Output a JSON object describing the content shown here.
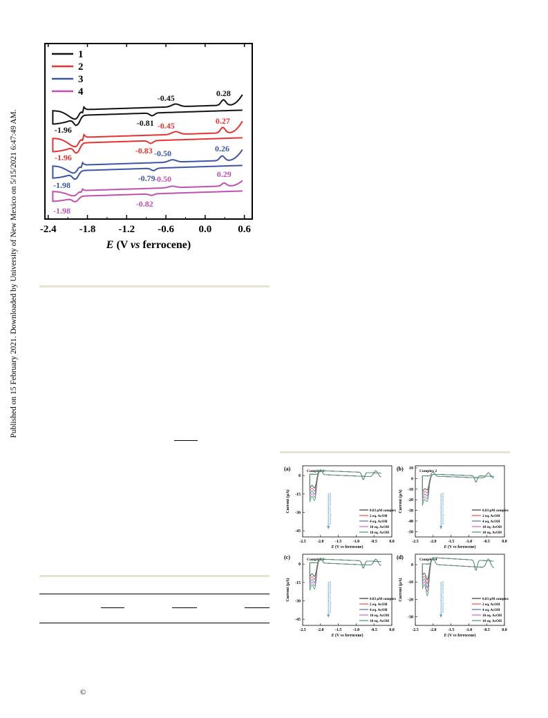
{
  "side_note": "Published on 15 February 2021. Downloaded by University of New Mexico on 5/15/2021 6:47:49 AM.",
  "copyright_symbol": "©",
  "colors": {
    "s1": "#111111",
    "s2": "#e8322f",
    "s3": "#3a55a8",
    "s4": "#c050b0",
    "rule": "#e6e4cf",
    "arrow": "#5b9bd5"
  },
  "chart_data": [
    {
      "type": "line",
      "title": "",
      "xlabel": "E (V vs ferrocene)",
      "ylabel": "",
      "xlim": [
        -2.45,
        0.72
      ],
      "ticks": [
        "-2.4",
        "-1.8",
        "-1.2",
        "-0.6",
        "0.0",
        "0.6"
      ],
      "tick_values": [
        -2.4,
        -1.8,
        -1.2,
        -0.6,
        0.0,
        0.6
      ],
      "legend": "top-left",
      "series": [
        {
          "name": "1",
          "peaks": [
            {
              "x": -1.96,
              "label": "-1.96"
            },
            {
              "x": -0.81,
              "label": "-0.81"
            },
            {
              "x": -0.45,
              "label": "-0.45"
            },
            {
              "x": 0.28,
              "label": "0.28"
            }
          ]
        },
        {
          "name": "2",
          "peaks": [
            {
              "x": -1.96,
              "label": "-1.96"
            },
            {
              "x": -0.83,
              "label": "-0.83"
            },
            {
              "x": -0.45,
              "label": "-0.45"
            },
            {
              "x": 0.27,
              "label": "0.27"
            }
          ]
        },
        {
          "name": "3",
          "peaks": [
            {
              "x": -1.98,
              "label": "-1.98"
            },
            {
              "x": -0.79,
              "label": "-0.79"
            },
            {
              "x": -0.5,
              "label": "-0.50"
            },
            {
              "x": 0.26,
              "label": "0.26"
            }
          ]
        },
        {
          "name": "4",
          "peaks": [
            {
              "x": -1.98,
              "label": "-1.98"
            },
            {
              "x": -0.82,
              "label": "-0.82"
            },
            {
              "x": -0.5,
              "label": "-0.50"
            },
            {
              "x": 0.29,
              "label": "0.29"
            }
          ]
        }
      ]
    },
    {
      "type": "line",
      "panels": [
        {
          "tag": "(a)",
          "title": "Complex 1",
          "yticks": [
            "0",
            "-15",
            "-30",
            "-45"
          ],
          "ylim": [
            -50,
            8
          ]
        },
        {
          "tag": "(b)",
          "title": "Complex 2",
          "yticks": [
            "10",
            "0",
            "-10",
            "-20",
            "-30",
            "-40",
            "-50"
          ],
          "ylim": [
            -55,
            12
          ]
        },
        {
          "tag": "(c)",
          "title": "Complex 3",
          "yticks": [
            "0",
            "-15",
            "-30",
            "-45"
          ],
          "ylim": [
            -50,
            8
          ]
        },
        {
          "tag": "(d)",
          "title": "Complex 4",
          "yticks": [
            "0",
            "-10",
            "-20",
            "-30"
          ],
          "ylim": [
            -35,
            6
          ]
        }
      ],
      "xlabel": "E (V vs ferrocene)",
      "ylabel": "Current (μA)",
      "xticks": [
        "-2.5",
        "-2.0",
        "-1.5",
        "-1.0",
        "-0.5",
        "0.0"
      ],
      "xlim": [
        -2.5,
        0.0
      ],
      "annotation": "Increasing Acid Concentration",
      "legend": [
        "0.83 μM complex",
        "2 eq. AcOH",
        "4 eq. AcOH",
        "10 eq. AcOH",
        "18 eq. AcOH"
      ],
      "legend_colors": [
        "#333333",
        "#e8504a",
        "#5566bb",
        "#d060c0",
        "#3aa060"
      ]
    }
  ]
}
